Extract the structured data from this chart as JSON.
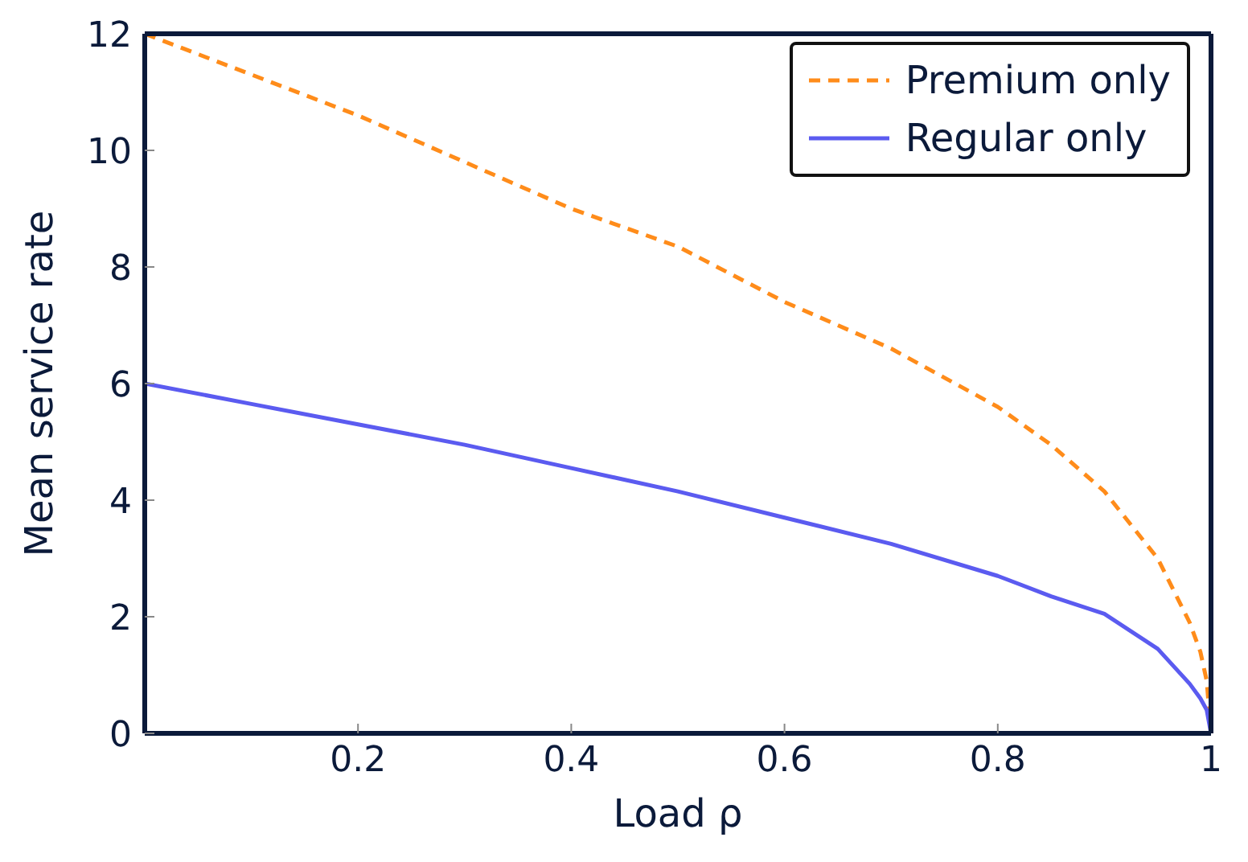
{
  "chart_data": {
    "type": "line",
    "xlabel": "Load ρ",
    "ylabel": "Mean service rate",
    "x": [
      0,
      0.1,
      0.2,
      0.3,
      0.4,
      0.5,
      0.6,
      0.7,
      0.8,
      0.85,
      0.9,
      0.95,
      0.98,
      0.99,
      0.996,
      1
    ],
    "series": [
      {
        "name": "Premium only",
        "color": "#ff8c1a",
        "line_style": "dashed",
        "values": [
          12,
          11.3,
          10.6,
          9.8,
          9.0,
          8.35,
          7.4,
          6.6,
          5.6,
          4.95,
          4.15,
          3.0,
          1.9,
          1.4,
          0.9,
          0
        ]
      },
      {
        "name": "Regular only",
        "color": "#5b5bf0",
        "line_style": "solid",
        "values": [
          6,
          5.65,
          5.3,
          4.95,
          4.55,
          4.15,
          3.7,
          3.25,
          2.7,
          2.35,
          2.05,
          1.45,
          0.85,
          0.6,
          0.4,
          0
        ]
      }
    ],
    "xlim": [
      0,
      1
    ],
    "xticks": [
      0.2,
      0.4,
      0.6,
      0.8,
      1
    ],
    "ylim": [
      0,
      12
    ],
    "yticks": [
      0,
      2,
      4,
      6,
      8,
      10,
      12
    ],
    "grid": false,
    "legend": "top right",
    "marker": "none"
  }
}
